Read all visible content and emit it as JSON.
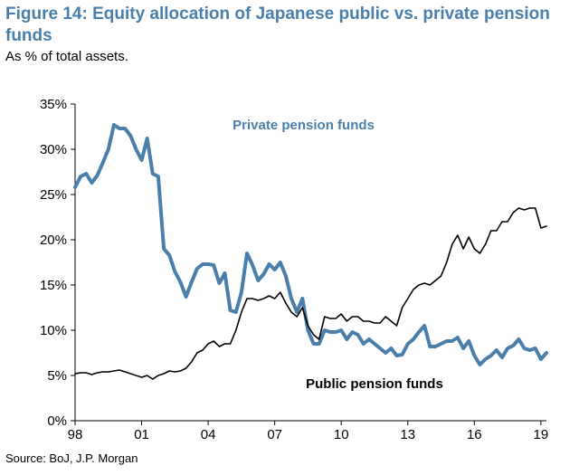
{
  "header": {
    "title": "Figure 14: Equity allocation of Japanese public vs. private pension funds",
    "subtitle": "As % of total assets."
  },
  "footer": {
    "source": "Source: BoJ, J.P. Morgan"
  },
  "colors": {
    "private": "#4a7fab",
    "public": "#000000",
    "title": "#4a7fab"
  },
  "chart_data": {
    "type": "line",
    "title": "Figure 14: Equity allocation of Japanese public vs. private pension funds",
    "subtitle": "As % of total assets.",
    "xlabel": "",
    "ylabel": "",
    "xlim": [
      1998,
      2019.25
    ],
    "ylim": [
      0,
      35
    ],
    "y_ticks": [
      0,
      5,
      10,
      15,
      20,
      25,
      30,
      35
    ],
    "y_tick_labels": [
      "0%",
      "5%",
      "10%",
      "15%",
      "20%",
      "25%",
      "30%",
      "35%"
    ],
    "x_ticks": [
      1998,
      2001,
      2004,
      2007,
      2010,
      2013,
      2016,
      2019
    ],
    "x_tick_labels": [
      "98",
      "01",
      "04",
      "07",
      "10",
      "13",
      "16",
      "19"
    ],
    "grid": false,
    "legend": "inline labels",
    "series": [
      {
        "name": "Private pension funds",
        "color": "#4a7fab",
        "x": [
          1998.0,
          1998.25,
          1998.5,
          1998.75,
          1999.0,
          1999.25,
          1999.5,
          1999.75,
          2000.0,
          2000.25,
          2000.5,
          2000.75,
          2001.0,
          2001.25,
          2001.5,
          2001.75,
          2002.0,
          2002.25,
          2002.5,
          2002.75,
          2003.0,
          2003.25,
          2003.5,
          2003.75,
          2004.0,
          2004.25,
          2004.5,
          2004.75,
          2005.0,
          2005.25,
          2005.5,
          2005.75,
          2006.0,
          2006.25,
          2006.5,
          2006.75,
          2007.0,
          2007.25,
          2007.5,
          2007.75,
          2008.0,
          2008.25,
          2008.5,
          2008.75,
          2009.0,
          2009.25,
          2009.5,
          2009.75,
          2010.0,
          2010.25,
          2010.5,
          2010.75,
          2011.0,
          2011.25,
          2011.5,
          2011.75,
          2012.0,
          2012.25,
          2012.5,
          2012.75,
          2013.0,
          2013.25,
          2013.5,
          2013.75,
          2014.0,
          2014.25,
          2014.5,
          2014.75,
          2015.0,
          2015.25,
          2015.5,
          2015.75,
          2016.0,
          2016.25,
          2016.5,
          2016.75,
          2017.0,
          2017.25,
          2017.5,
          2017.75,
          2018.0,
          2018.25,
          2018.5,
          2018.75,
          2019.0,
          2019.25
        ],
        "y": [
          25.8,
          27.0,
          27.3,
          26.3,
          27.1,
          28.5,
          30.0,
          32.7,
          32.3,
          32.3,
          31.5,
          30.0,
          28.8,
          31.2,
          27.3,
          27.0,
          19.0,
          18.3,
          16.5,
          15.3,
          13.7,
          15.3,
          16.8,
          17.3,
          17.3,
          17.2,
          15.2,
          16.3,
          12.2,
          12.0,
          14.2,
          18.5,
          17.2,
          15.5,
          16.2,
          17.3,
          16.7,
          17.5,
          16.0,
          13.5,
          12.0,
          13.5,
          10.0,
          8.5,
          8.5,
          10.0,
          9.8,
          9.8,
          10.0,
          9.0,
          9.8,
          9.5,
          8.5,
          9.0,
          8.5,
          8.0,
          7.5,
          8.0,
          7.2,
          7.3,
          8.5,
          9.0,
          9.8,
          10.5,
          8.2,
          8.2,
          8.5,
          8.8,
          8.8,
          9.2,
          8.0,
          8.8,
          7.2,
          6.2,
          6.8,
          7.2,
          7.8,
          7.0,
          8.0,
          8.3,
          9.0,
          8.0,
          7.8,
          8.0,
          6.8,
          7.5
        ]
      },
      {
        "name": "Public pension funds",
        "color": "#000000",
        "x": [
          1998.0,
          1998.25,
          1998.5,
          1998.75,
          1999.0,
          1999.25,
          1999.5,
          1999.75,
          2000.0,
          2000.25,
          2000.5,
          2000.75,
          2001.0,
          2001.25,
          2001.5,
          2001.75,
          2002.0,
          2002.25,
          2002.5,
          2002.75,
          2003.0,
          2003.25,
          2003.5,
          2003.75,
          2004.0,
          2004.25,
          2004.5,
          2004.75,
          2005.0,
          2005.25,
          2005.5,
          2005.75,
          2006.0,
          2006.25,
          2006.5,
          2006.75,
          2007.0,
          2007.25,
          2007.5,
          2007.75,
          2008.0,
          2008.25,
          2008.5,
          2008.75,
          2009.0,
          2009.25,
          2009.5,
          2009.75,
          2010.0,
          2010.25,
          2010.5,
          2010.75,
          2011.0,
          2011.25,
          2011.5,
          2011.75,
          2012.0,
          2012.25,
          2012.5,
          2012.75,
          2013.0,
          2013.25,
          2013.5,
          2013.75,
          2014.0,
          2014.25,
          2014.5,
          2014.75,
          2015.0,
          2015.25,
          2015.5,
          2015.75,
          2016.0,
          2016.25,
          2016.5,
          2016.75,
          2017.0,
          2017.25,
          2017.5,
          2017.75,
          2018.0,
          2018.25,
          2018.5,
          2018.75,
          2019.0,
          2019.25
        ],
        "y": [
          5.2,
          5.3,
          5.3,
          5.1,
          5.3,
          5.4,
          5.4,
          5.5,
          5.6,
          5.4,
          5.2,
          5.0,
          4.8,
          5.0,
          4.6,
          5.0,
          5.2,
          5.5,
          5.4,
          5.5,
          5.8,
          6.5,
          7.5,
          7.8,
          8.5,
          8.8,
          8.2,
          8.5,
          8.5,
          10.0,
          12.0,
          13.5,
          13.5,
          13.3,
          13.5,
          13.8,
          13.5,
          14.2,
          13.0,
          12.0,
          11.5,
          12.5,
          10.5,
          9.5,
          9.0,
          11.5,
          11.3,
          11.3,
          11.8,
          11.0,
          11.5,
          11.5,
          11.0,
          11.0,
          10.8,
          10.8,
          11.5,
          11.0,
          10.5,
          12.5,
          13.5,
          14.5,
          15.0,
          15.2,
          15.0,
          15.5,
          16.0,
          17.5,
          19.5,
          20.5,
          19.0,
          20.3,
          19.0,
          18.5,
          19.5,
          21.0,
          21.0,
          22.0,
          22.0,
          23.0,
          23.5,
          23.3,
          23.5,
          23.5,
          21.3,
          21.5
        ]
      }
    ],
    "annotations": [
      {
        "text": "Private pension funds",
        "series": 0,
        "x": 2008.3,
        "y": 32.2
      },
      {
        "text": "Public pension funds",
        "series": 1,
        "x": 2011.5,
        "y": 3.6
      }
    ]
  }
}
